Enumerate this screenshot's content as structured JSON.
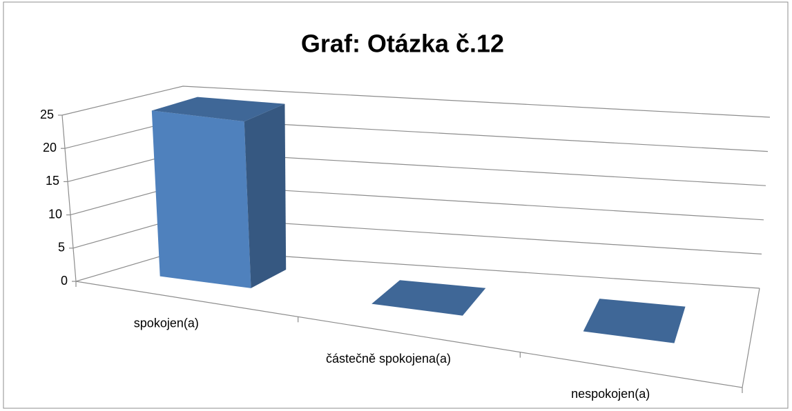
{
  "chart_data": {
    "type": "bar3d",
    "title": "Graf: Otázka č.12",
    "categories": [
      "spokojen(a)",
      "částečně spokojena(a)",
      "nespokojen(a)"
    ],
    "values": [
      25,
      0,
      0
    ],
    "color": "#4f81bd",
    "ylim": [
      0,
      25
    ],
    "yticks": [
      0,
      5,
      10,
      15,
      20,
      25
    ],
    "grid": true
  }
}
